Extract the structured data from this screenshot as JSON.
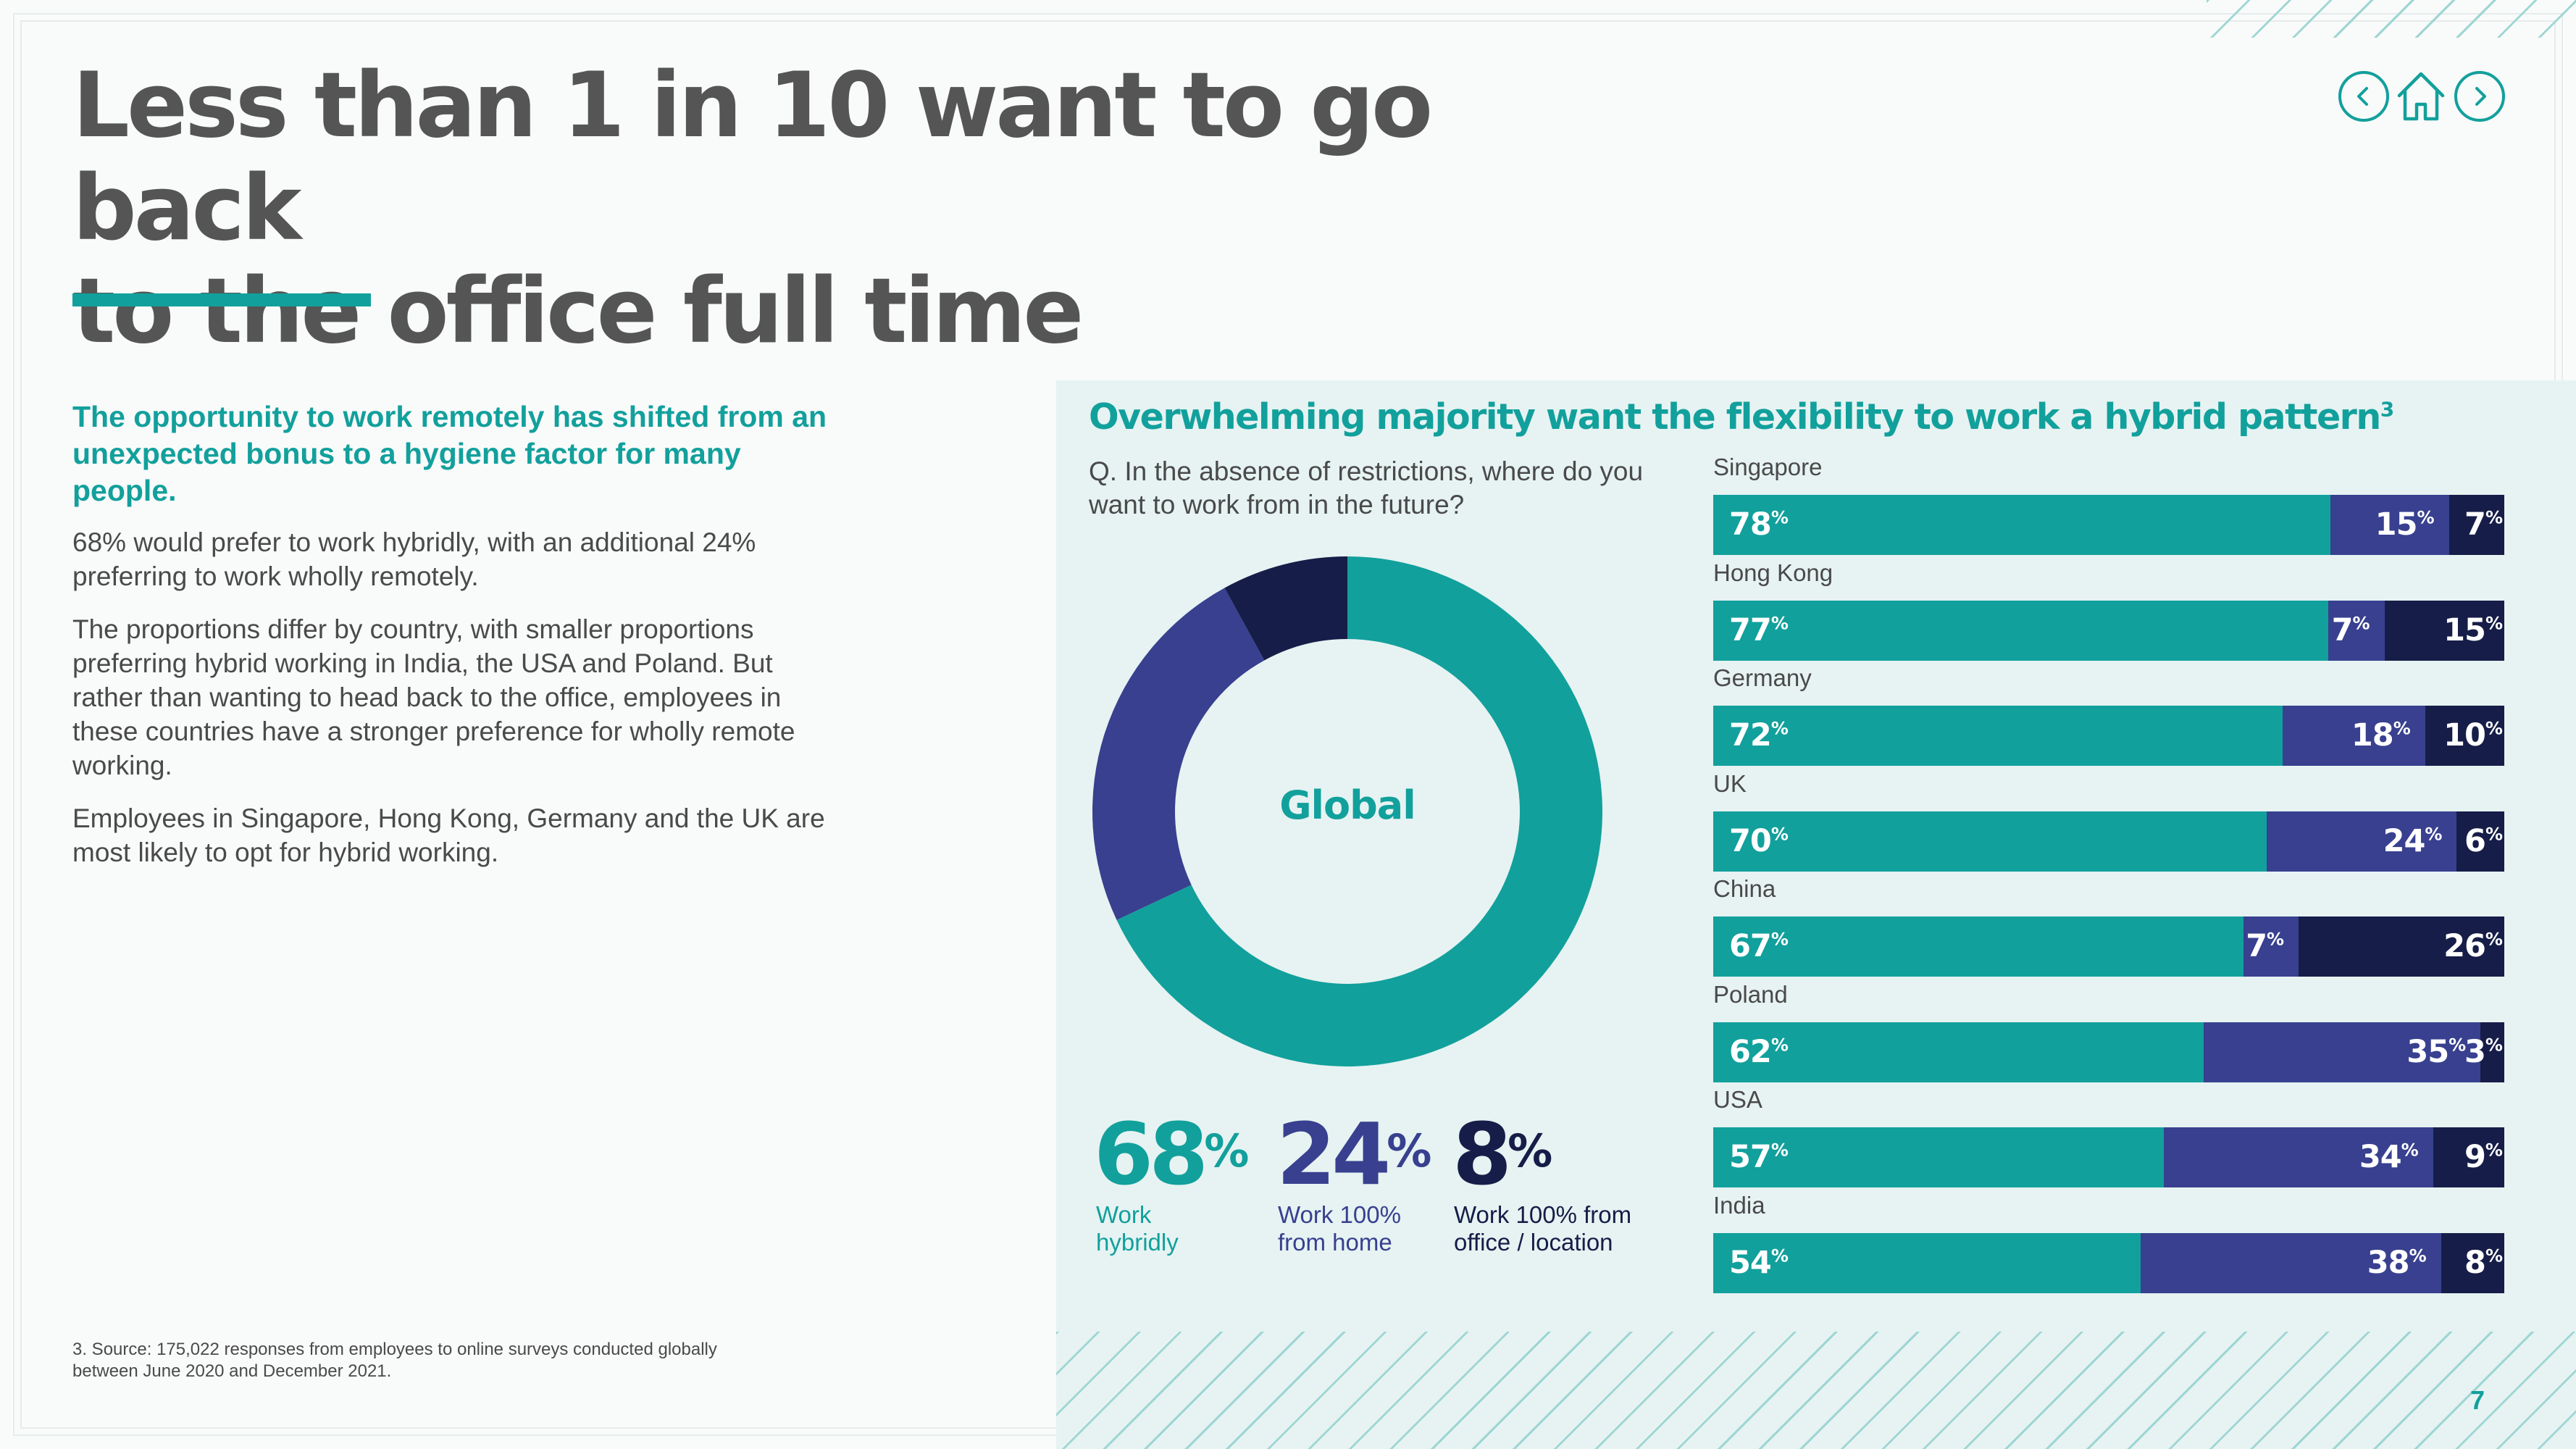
{
  "title": {
    "line1": "Less than 1 in 10 want to go back",
    "line2": "to the office full time"
  },
  "nav": {
    "prev_icon": "chevron-left-icon",
    "home_icon": "home-icon",
    "next_icon": "chevron-right-icon"
  },
  "left": {
    "lead": "The opportunity to work remotely has shifted from an unexpected bonus to a hygiene factor for many people.",
    "p1": "68% would prefer to work hybridly, with an additional 24% preferring to work wholly remotely.",
    "p2": "The proportions differ by country, with smaller proportions preferring hybrid working in India, the USA and Poland. But rather than wanting to head back to the office, employees in these countries have a stronger preference for wholly remote working.",
    "p3": "Employees in Singapore, Hong Kong, Germany and the UK are most likely to opt for hybrid working."
  },
  "footnote": "3. Source: 175,022 responses from employees to online surveys conducted globally between June 2020 and December 2021.",
  "panel": {
    "title": "Overwhelming majority want the flexibility to work a hybrid pattern",
    "title_sup": "3",
    "question": "Q. In the absence of restrictions, where do you want to work from in the future?",
    "global_label": "Global"
  },
  "stats": [
    {
      "value": "68",
      "label": "Work\nhybridly"
    },
    {
      "value": "24",
      "label": "Work 100%\nfrom home"
    },
    {
      "value": "8",
      "label": "Work 100% from\noffice / location"
    }
  ],
  "pct_symbol": "%",
  "page_number": "7",
  "colors": {
    "teal": "#12a09c",
    "purple": "#38408f",
    "navy": "#161d48"
  },
  "chart_data": [
    {
      "type": "pie",
      "variant": "donut",
      "title": "Global",
      "categories": [
        "Work hybridly",
        "Work 100% from home",
        "Work 100% from office / location"
      ],
      "values": [
        68,
        24,
        8
      ]
    },
    {
      "type": "bar",
      "orientation": "horizontal",
      "stacked": true,
      "categories": [
        "Singapore",
        "Hong Kong",
        "Germany",
        "UK",
        "China",
        "Poland",
        "USA",
        "India"
      ],
      "series": [
        {
          "values": [
            78,
            77,
            72,
            70,
            67,
            62,
            57,
            54
          ]
        },
        {
          "values": [
            15,
            7,
            18,
            24,
            7,
            35,
            34,
            38
          ]
        },
        {
          "values": [
            7,
            15,
            10,
            6,
            26,
            3,
            9,
            8
          ]
        }
      ],
      "xlim": [
        0,
        100
      ]
    }
  ]
}
